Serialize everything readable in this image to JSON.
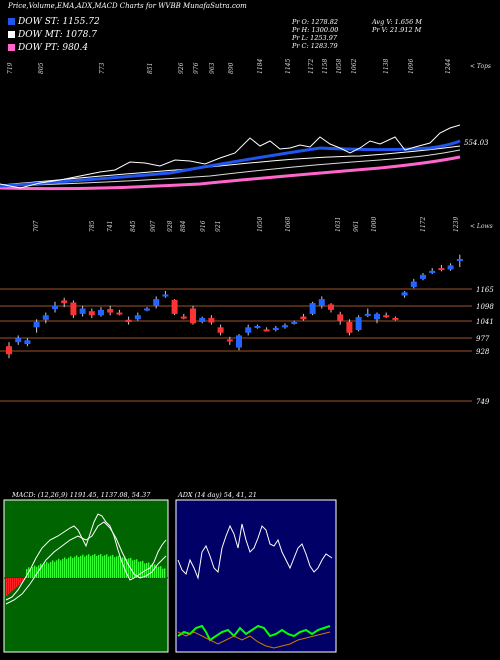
{
  "title": "Price,Volume,EMA,ADX,MACD Charts for WVBB MunafaSutra.com",
  "legend": [
    {
      "label": "DOW ST: 1155.72",
      "color": "#2255ee"
    },
    {
      "label": "DOW MT: 1078.7",
      "color": "#ffffff"
    },
    {
      "label": "DOW PT: 980.4",
      "color": "#ff66cc"
    }
  ],
  "stats": {
    "pr_o": "Pr O: 1278.82",
    "pr_h": "Pr H: 1300.00",
    "pr_l": "Pr L: 1253.97",
    "pr_c": "Pr C: 1283.79",
    "avg_v": "Avg V: 1.656 M",
    "pr_v": "Pr V: 21.912 M"
  },
  "top_labels": [
    "719",
    "805",
    "773",
    "851",
    "926",
    "976",
    "963",
    "890",
    "1184",
    "1145",
    "1172",
    "1158",
    "1058",
    "1062",
    "1138",
    "1096",
    "1244"
  ],
  "top_right_label": "< Tops",
  "mid_labels": [
    "707",
    "785",
    "741",
    "845",
    "907",
    "928",
    "884",
    "916",
    "921",
    "1050",
    "1068",
    "1031",
    "961",
    "1000",
    "1172",
    "1239"
  ],
  "mid_right_label": "< Lows",
  "ema_value_label": "554.03",
  "price_axis": [
    "1165",
    "1098",
    "1041",
    "977",
    "928",
    "749"
  ],
  "macd_caption": "MACD: (12,26,9) 1191.45, 1137.08, 54.37",
  "adx_caption": "ADX (14 day) 54, 41, 21",
  "chart_data": {
    "type": "candlestick",
    "y_axis_ticks": [
      1165,
      1098,
      1041,
      977,
      928,
      749
    ],
    "candles": [
      {
        "o": 960,
        "c": 930,
        "h": 975,
        "l": 915
      },
      {
        "o": 975,
        "c": 990,
        "h": 1000,
        "l": 965
      },
      {
        "o": 968,
        "c": 982,
        "h": 990,
        "l": 960
      },
      {
        "o": 1030,
        "c": 1050,
        "h": 1060,
        "l": 1010
      },
      {
        "o": 1058,
        "c": 1075,
        "h": 1085,
        "l": 1045
      },
      {
        "o": 1098,
        "c": 1110,
        "h": 1125,
        "l": 1085
      },
      {
        "o": 1130,
        "c": 1120,
        "h": 1140,
        "l": 1105
      },
      {
        "o": 1122,
        "c": 1075,
        "h": 1130,
        "l": 1065
      },
      {
        "o": 1080,
        "c": 1100,
        "h": 1110,
        "l": 1070
      },
      {
        "o": 1090,
        "c": 1075,
        "h": 1100,
        "l": 1065
      },
      {
        "o": 1075,
        "c": 1095,
        "h": 1105,
        "l": 1070
      },
      {
        "o": 1098,
        "c": 1085,
        "h": 1110,
        "l": 1075
      },
      {
        "o": 1085,
        "c": 1080,
        "h": 1095,
        "l": 1075
      },
      {
        "o": 1058,
        "c": 1050,
        "h": 1070,
        "l": 1040
      },
      {
        "o": 1060,
        "c": 1075,
        "h": 1085,
        "l": 1055
      },
      {
        "o": 1095,
        "c": 1100,
        "h": 1105,
        "l": 1090
      },
      {
        "o": 1110,
        "c": 1135,
        "h": 1145,
        "l": 1100
      },
      {
        "o": 1148,
        "c": 1152,
        "h": 1165,
        "l": 1140
      },
      {
        "o": 1132,
        "c": 1080,
        "h": 1135,
        "l": 1075
      },
      {
        "o": 1070,
        "c": 1068,
        "h": 1080,
        "l": 1060
      },
      {
        "o": 1100,
        "c": 1045,
        "h": 1110,
        "l": 1040
      },
      {
        "o": 1050,
        "c": 1065,
        "h": 1070,
        "l": 1045
      },
      {
        "o": 1065,
        "c": 1048,
        "h": 1075,
        "l": 1040
      },
      {
        "o": 1030,
        "c": 1010,
        "h": 1040,
        "l": 1000
      },
      {
        "o": 985,
        "c": 980,
        "h": 995,
        "l": 965
      },
      {
        "o": 955,
        "c": 1000,
        "h": 1005,
        "l": 945
      },
      {
        "o": 1010,
        "c": 1030,
        "h": 1040,
        "l": 1000
      },
      {
        "o": 1030,
        "c": 1035,
        "h": 1040,
        "l": 1025
      },
      {
        "o": 1022,
        "c": 1018,
        "h": 1030,
        "l": 1015
      },
      {
        "o": 1020,
        "c": 1028,
        "h": 1035,
        "l": 1015
      },
      {
        "o": 1030,
        "c": 1038,
        "h": 1045,
        "l": 1025
      },
      {
        "o": 1045,
        "c": 1050,
        "h": 1055,
        "l": 1040
      },
      {
        "o": 1070,
        "c": 1060,
        "h": 1080,
        "l": 1055
      },
      {
        "o": 1080,
        "c": 1120,
        "h": 1125,
        "l": 1075
      },
      {
        "o": 1110,
        "c": 1135,
        "h": 1145,
        "l": 1100
      },
      {
        "o": 1115,
        "c": 1095,
        "h": 1120,
        "l": 1085
      },
      {
        "o": 1078,
        "c": 1055,
        "h": 1088,
        "l": 1040
      },
      {
        "o": 1050,
        "c": 1010,
        "h": 1060,
        "l": 1000
      },
      {
        "o": 1020,
        "c": 1068,
        "h": 1075,
        "l": 1015
      },
      {
        "o": 1078,
        "c": 1080,
        "h": 1100,
        "l": 1068
      },
      {
        "o": 1060,
        "c": 1080,
        "h": 1085,
        "l": 1045
      },
      {
        "o": 1075,
        "c": 1072,
        "h": 1085,
        "l": 1065
      },
      {
        "o": 1065,
        "c": 1060,
        "h": 1070,
        "l": 1055
      },
      {
        "o": 1148,
        "c": 1160,
        "h": 1165,
        "l": 1140
      },
      {
        "o": 1180,
        "c": 1200,
        "h": 1210,
        "l": 1175
      },
      {
        "o": 1210,
        "c": 1225,
        "h": 1232,
        "l": 1205
      },
      {
        "o": 1232,
        "c": 1240,
        "h": 1250,
        "l": 1228
      },
      {
        "o": 1250,
        "c": 1245,
        "h": 1262,
        "l": 1238
      },
      {
        "o": 1245,
        "c": 1260,
        "h": 1268,
        "l": 1240
      },
      {
        "o": 1279,
        "c": 1284,
        "h": 1300,
        "l": 1254
      }
    ]
  }
}
